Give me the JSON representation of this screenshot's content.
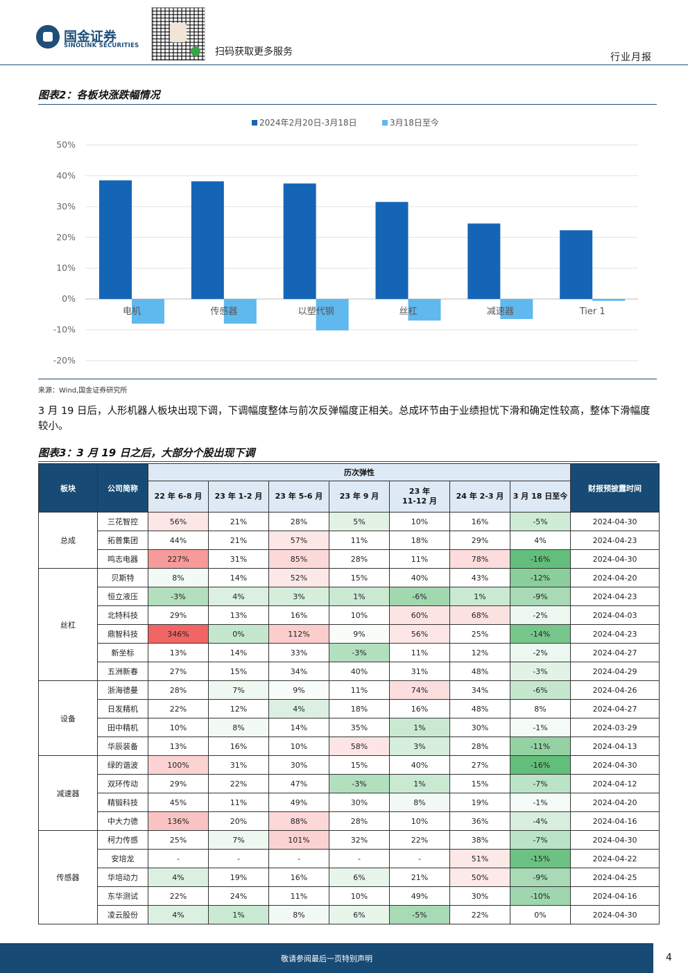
{
  "header": {
    "logo_cn": "国金证券",
    "logo_en": "SINOLINK SECURITIES",
    "scan_text": "扫码获取更多服务",
    "report_type": "行业月报"
  },
  "figure2": {
    "title": "图表2：各板块涨跌幅情况",
    "source": "来源：Wind,国金证券研究所"
  },
  "chart_data": {
    "type": "bar",
    "categories": [
      "电机",
      "传感器",
      "以塑代钢",
      "丝杠",
      "减速器",
      "Tier 1"
    ],
    "series": [
      {
        "name": "2024年2月20日-3月18日",
        "values": [
          38.5,
          38.2,
          37.5,
          31.5,
          24.5,
          22.3
        ],
        "color": "#1565b6"
      },
      {
        "name": "3月18日至今",
        "values": [
          -8.0,
          -8.0,
          -10.2,
          -7.0,
          -6.5,
          -0.6
        ],
        "color": "#5fb8ee"
      }
    ],
    "ylim": [
      -20,
      50
    ],
    "yticks": [
      -20,
      -10,
      0,
      10,
      20,
      30,
      40,
      50
    ],
    "ytick_labels": [
      "-20%",
      "-10%",
      "0%",
      "10%",
      "20%",
      "30%",
      "40%",
      "50%"
    ],
    "legend_position": "top-center",
    "grid": true
  },
  "paragraph": "3 月 19 日后，人形机器人板块出现下调，下调幅度整体与前次反弹幅度正相关。总成环节由于业绩担忧下滑和确定性较高，整体下滑幅度较小。",
  "figure3": {
    "title": "图表3：3 月 19 日之后，大部分个股出现下调",
    "headers": {
      "sector": "板块",
      "company": "公司简称",
      "history": "历次弹性",
      "disclosure": "财报预披露时间",
      "periods": [
        "22 年 6-8 月",
        "23 年 1-2 月",
        "23 年 5-6 月",
        "23 年 9 月",
        "23 年\n11-12 月",
        "24 年 2-3 月",
        "3 月 18 日至今"
      ]
    },
    "groups": [
      {
        "sector": "总成",
        "rows": [
          {
            "name": "三花智控",
            "values": [
              "56%",
              "21%",
              "28%",
              "5%",
              "10%",
              "16%",
              "-5%"
            ],
            "date": "2024-04-30"
          },
          {
            "name": "拓普集团",
            "values": [
              "44%",
              "21%",
              "57%",
              "11%",
              "18%",
              "29%",
              "4%"
            ],
            "date": "2024-04-23"
          },
          {
            "name": "鸣志电器",
            "values": [
              "227%",
              "31%",
              "85%",
              "28%",
              "11%",
              "78%",
              "-16%"
            ],
            "date": "2024-04-30"
          }
        ]
      },
      {
        "sector": "丝杠",
        "rows": [
          {
            "name": "贝斯特",
            "values": [
              "8%",
              "14%",
              "52%",
              "15%",
              "40%",
              "43%",
              "-12%"
            ],
            "date": "2024-04-20"
          },
          {
            "name": "恒立液压",
            "values": [
              "-3%",
              "4%",
              "3%",
              "1%",
              "-6%",
              "1%",
              "-9%"
            ],
            "date": "2024-04-23"
          },
          {
            "name": "北特科技",
            "values": [
              "29%",
              "13%",
              "16%",
              "10%",
              "60%",
              "68%",
              "-2%"
            ],
            "date": "2024-04-03"
          },
          {
            "name": "鼎智科技",
            "values": [
              "346%",
              "0%",
              "112%",
              "9%",
              "56%",
              "25%",
              "-14%"
            ],
            "date": "2024-04-23"
          },
          {
            "name": "新坐标",
            "values": [
              "13%",
              "14%",
              "33%",
              "-3%",
              "11%",
              "12%",
              "-2%"
            ],
            "date": "2024-04-27"
          },
          {
            "name": "五洲新春",
            "values": [
              "27%",
              "15%",
              "34%",
              "40%",
              "31%",
              "48%",
              "-3%"
            ],
            "date": "2024-04-29"
          }
        ]
      },
      {
        "sector": "设备",
        "rows": [
          {
            "name": "浙海德曼",
            "values": [
              "28%",
              "7%",
              "9%",
              "11%",
              "74%",
              "34%",
              "-6%"
            ],
            "date": "2024-04-26"
          },
          {
            "name": "日发精机",
            "values": [
              "22%",
              "12%",
              "4%",
              "18%",
              "16%",
              "48%",
              "8%"
            ],
            "date": "2024-04-27"
          },
          {
            "name": "田中精机",
            "values": [
              "10%",
              "8%",
              "14%",
              "35%",
              "1%",
              "30%",
              "-1%"
            ],
            "date": "2024-03-29"
          },
          {
            "name": "华辰装备",
            "values": [
              "13%",
              "16%",
              "10%",
              "58%",
              "3%",
              "28%",
              "-11%"
            ],
            "date": "2024-04-13"
          }
        ]
      },
      {
        "sector": "减速器",
        "rows": [
          {
            "name": "绿的谐波",
            "values": [
              "100%",
              "31%",
              "30%",
              "15%",
              "40%",
              "27%",
              "-16%"
            ],
            "date": "2024-04-30"
          },
          {
            "name": "双环传动",
            "values": [
              "29%",
              "22%",
              "47%",
              "-3%",
              "1%",
              "15%",
              "-7%"
            ],
            "date": "2024-04-12"
          },
          {
            "name": "精锻科技",
            "values": [
              "45%",
              "11%",
              "49%",
              "30%",
              "8%",
              "19%",
              "-1%"
            ],
            "date": "2024-04-20"
          },
          {
            "name": "中大力德",
            "values": [
              "136%",
              "20%",
              "88%",
              "28%",
              "10%",
              "36%",
              "-4%"
            ],
            "date": "2024-04-16"
          }
        ]
      },
      {
        "sector": "传感器",
        "rows": [
          {
            "name": "柯力传感",
            "values": [
              "25%",
              "7%",
              "101%",
              "32%",
              "22%",
              "38%",
              "-7%"
            ],
            "date": "2024-04-30"
          },
          {
            "name": "安培龙",
            "values": [
              "-",
              "-",
              "-",
              "-",
              "-",
              "51%",
              "-15%"
            ],
            "date": "2024-04-22"
          },
          {
            "name": "华培动力",
            "values": [
              "4%",
              "19%",
              "16%",
              "6%",
              "21%",
              "50%",
              "-9%"
            ],
            "date": "2024-04-25"
          },
          {
            "name": "东华测试",
            "values": [
              "22%",
              "24%",
              "11%",
              "10%",
              "49%",
              "30%",
              "-10%"
            ],
            "date": "2024-04-16"
          },
          {
            "name": "凌云股份",
            "values": [
              "4%",
              "1%",
              "8%",
              "6%",
              "-5%",
              "22%",
              "0%"
            ],
            "date": "2024-04-30"
          }
        ]
      }
    ]
  },
  "footer": {
    "disclaimer": "敬请参阅最后一页特别声明",
    "page_number": "4"
  },
  "colors": {
    "brand": "#174a74",
    "bar_primary": "#1565b6",
    "bar_secondary": "#5fb8ee",
    "positive_high": "#f26b6b",
    "negative": "#63be7b"
  }
}
